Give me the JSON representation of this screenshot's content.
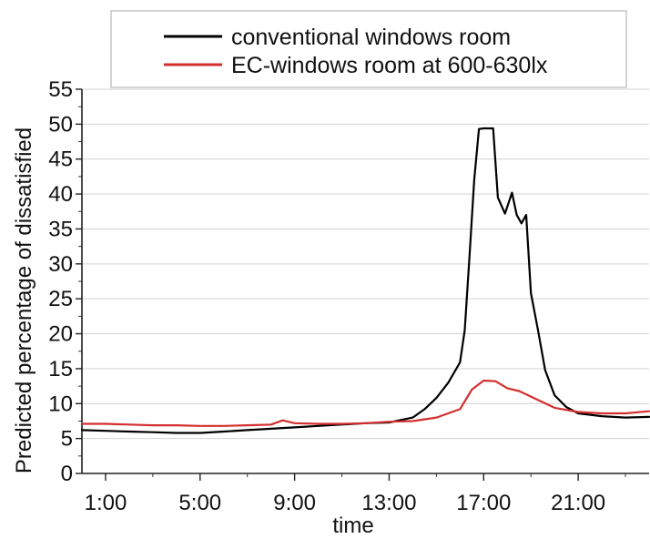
{
  "chart_data": {
    "type": "line",
    "title": "",
    "xlabel": "time",
    "ylabel": "Predicted percentage of dissatisfied",
    "xlim": [
      0,
      24
    ],
    "ylim": [
      0,
      55
    ],
    "x_tick_labels": [
      "1:00",
      "5:00",
      "9:00",
      "13:00",
      "17:00",
      "21:00"
    ],
    "x_tick_values": [
      1,
      5,
      9,
      13,
      17,
      21
    ],
    "y_tick_values": [
      0,
      5,
      10,
      15,
      20,
      25,
      30,
      35,
      40,
      45,
      50,
      55
    ],
    "grid": "horizontal",
    "legend_position": "top",
    "series": [
      {
        "name": "conventional windows room",
        "color": "#000000",
        "x": [
          0,
          1,
          2,
          3,
          4,
          5,
          6,
          7,
          8,
          9,
          10,
          11,
          12,
          13,
          14,
          14.5,
          15,
          15.5,
          16,
          16.2,
          16.4,
          16.6,
          16.8,
          17,
          17.4,
          17.6,
          17.9,
          18.2,
          18.4,
          18.6,
          18.8,
          19,
          19.3,
          19.6,
          20,
          20.5,
          21,
          22,
          23,
          24
        ],
        "values": [
          6.2,
          6.1,
          6.0,
          5.9,
          5.8,
          5.8,
          6.0,
          6.2,
          6.4,
          6.6,
          6.8,
          7.0,
          7.2,
          7.3,
          8.0,
          9.2,
          10.8,
          13.0,
          15.9,
          20.5,
          31.0,
          42.0,
          49.3,
          49.4,
          49.4,
          39.5,
          37.2,
          40.2,
          37.0,
          35.8,
          37.0,
          25.8,
          20.5,
          14.8,
          11.2,
          9.5,
          8.6,
          8.2,
          8.0,
          8.1
        ]
      },
      {
        "name": "EC-windows room at 600-630lx",
        "color": "#d32f2f",
        "x": [
          0,
          1,
          2,
          3,
          4,
          5,
          6,
          7,
          8,
          8.5,
          9,
          10,
          11,
          12,
          13,
          14,
          15,
          16,
          16.5,
          17,
          17.5,
          18,
          18.5,
          19,
          20,
          21,
          22,
          23,
          24
        ],
        "values": [
          7.1,
          7.1,
          7.0,
          6.9,
          6.9,
          6.8,
          6.8,
          6.9,
          7.0,
          7.6,
          7.2,
          7.1,
          7.1,
          7.2,
          7.4,
          7.5,
          8.0,
          9.2,
          12.0,
          13.3,
          13.2,
          12.2,
          11.8,
          11.0,
          9.4,
          8.8,
          8.6,
          8.6,
          8.9
        ]
      }
    ]
  }
}
